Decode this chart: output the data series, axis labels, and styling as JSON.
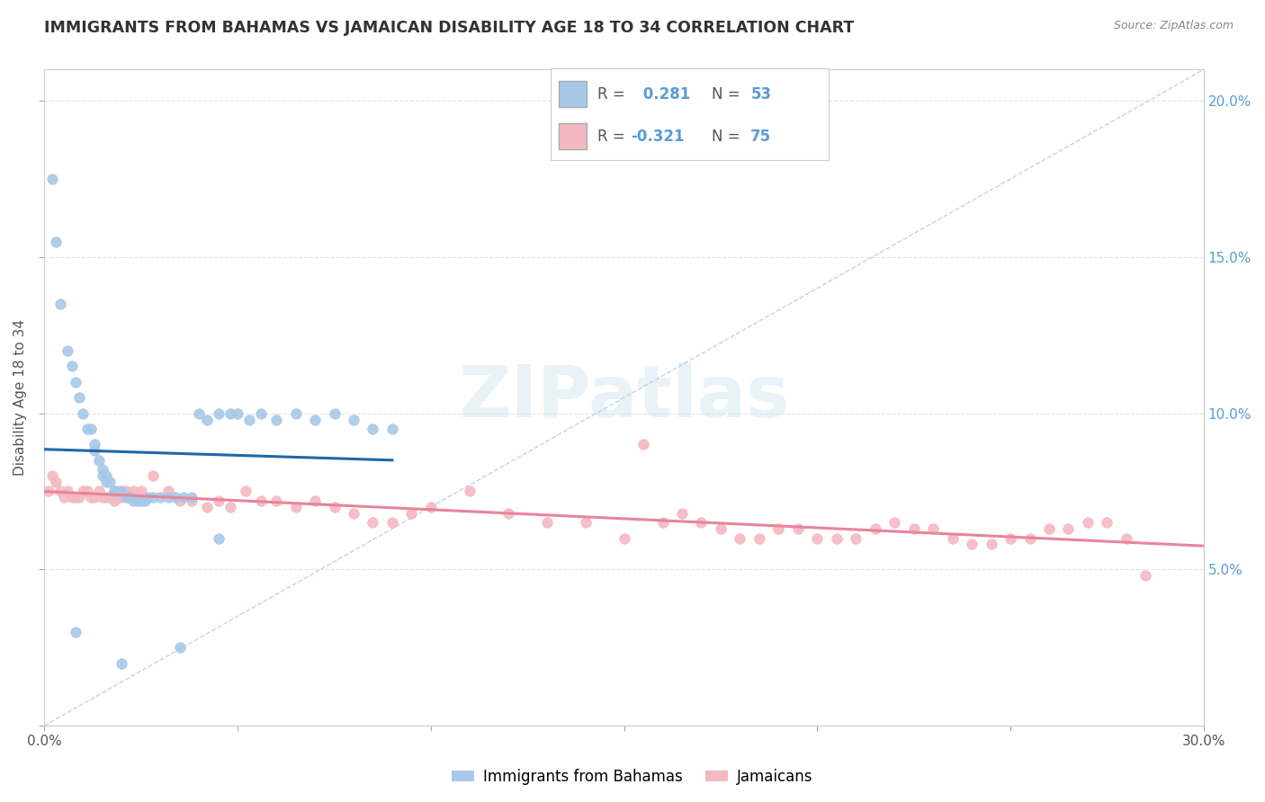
{
  "title": "IMMIGRANTS FROM BAHAMAS VS JAMAICAN DISABILITY AGE 18 TO 34 CORRELATION CHART",
  "source": "Source: ZipAtlas.com",
  "ylabel": "Disability Age 18 to 34",
  "xmin": 0.0,
  "xmax": 0.3,
  "ymin": 0.0,
  "ymax": 0.21,
  "background_color": "#ffffff",
  "plot_bg_color": "#ffffff",
  "bahamas_color": "#a8c8e8",
  "jamaican_color": "#f4b8c0",
  "bahamas_trend_color": "#2166ac",
  "jamaican_trend_color": "#e8849a",
  "dash_line_color": "#b0c8e8",
  "grid_color": "#dddddd",
  "ytick_color": "#5b9bd5",
  "bahamas_R": 0.281,
  "bahamas_N": 53,
  "jamaican_R": -0.321,
  "jamaican_N": 75,
  "watermark_text": "ZIPatlas",
  "legend_labels": [
    "Immigrants from Bahamas",
    "Jamaicans"
  ],
  "bahamas_scatter_x": [
    0.002,
    0.003,
    0.004,
    0.006,
    0.007,
    0.008,
    0.009,
    0.01,
    0.011,
    0.012,
    0.013,
    0.013,
    0.014,
    0.015,
    0.015,
    0.016,
    0.016,
    0.017,
    0.018,
    0.018,
    0.019,
    0.02,
    0.021,
    0.022,
    0.023,
    0.024,
    0.025,
    0.026,
    0.027,
    0.028,
    0.03,
    0.032,
    0.034,
    0.036,
    0.038,
    0.04,
    0.042,
    0.045,
    0.048,
    0.05,
    0.053,
    0.056,
    0.06,
    0.065,
    0.07,
    0.075,
    0.08,
    0.085,
    0.09,
    0.008,
    0.035,
    0.02,
    0.045
  ],
  "bahamas_scatter_y": [
    0.175,
    0.155,
    0.135,
    0.12,
    0.115,
    0.11,
    0.105,
    0.1,
    0.095,
    0.095,
    0.09,
    0.088,
    0.085,
    0.082,
    0.08,
    0.08,
    0.078,
    0.078,
    0.075,
    0.075,
    0.075,
    0.075,
    0.073,
    0.073,
    0.072,
    0.072,
    0.072,
    0.072,
    0.073,
    0.073,
    0.073,
    0.073,
    0.073,
    0.073,
    0.073,
    0.1,
    0.098,
    0.1,
    0.1,
    0.1,
    0.098,
    0.1,
    0.098,
    0.1,
    0.098,
    0.1,
    0.098,
    0.095,
    0.095,
    0.03,
    0.025,
    0.02,
    0.06
  ],
  "jamaican_scatter_x": [
    0.001,
    0.002,
    0.003,
    0.004,
    0.005,
    0.006,
    0.007,
    0.008,
    0.009,
    0.01,
    0.011,
    0.012,
    0.013,
    0.014,
    0.015,
    0.016,
    0.017,
    0.018,
    0.019,
    0.02,
    0.021,
    0.022,
    0.023,
    0.024,
    0.025,
    0.028,
    0.032,
    0.035,
    0.038,
    0.042,
    0.045,
    0.048,
    0.052,
    0.056,
    0.06,
    0.065,
    0.07,
    0.075,
    0.08,
    0.085,
    0.09,
    0.095,
    0.1,
    0.11,
    0.12,
    0.13,
    0.14,
    0.15,
    0.155,
    0.16,
    0.165,
    0.17,
    0.175,
    0.18,
    0.185,
    0.19,
    0.195,
    0.2,
    0.205,
    0.21,
    0.215,
    0.22,
    0.225,
    0.23,
    0.235,
    0.24,
    0.245,
    0.25,
    0.255,
    0.26,
    0.265,
    0.27,
    0.275,
    0.28,
    0.285
  ],
  "jamaican_scatter_y": [
    0.075,
    0.08,
    0.078,
    0.075,
    0.073,
    0.075,
    0.073,
    0.073,
    0.073,
    0.075,
    0.075,
    0.073,
    0.073,
    0.075,
    0.073,
    0.073,
    0.073,
    0.072,
    0.073,
    0.073,
    0.075,
    0.073,
    0.075,
    0.073,
    0.075,
    0.08,
    0.075,
    0.072,
    0.072,
    0.07,
    0.072,
    0.07,
    0.075,
    0.072,
    0.072,
    0.07,
    0.072,
    0.07,
    0.068,
    0.065,
    0.065,
    0.068,
    0.07,
    0.075,
    0.068,
    0.065,
    0.065,
    0.06,
    0.09,
    0.065,
    0.068,
    0.065,
    0.063,
    0.06,
    0.06,
    0.063,
    0.063,
    0.06,
    0.06,
    0.06,
    0.063,
    0.065,
    0.063,
    0.063,
    0.06,
    0.058,
    0.058,
    0.06,
    0.06,
    0.063,
    0.063,
    0.065,
    0.065,
    0.06,
    0.048
  ]
}
